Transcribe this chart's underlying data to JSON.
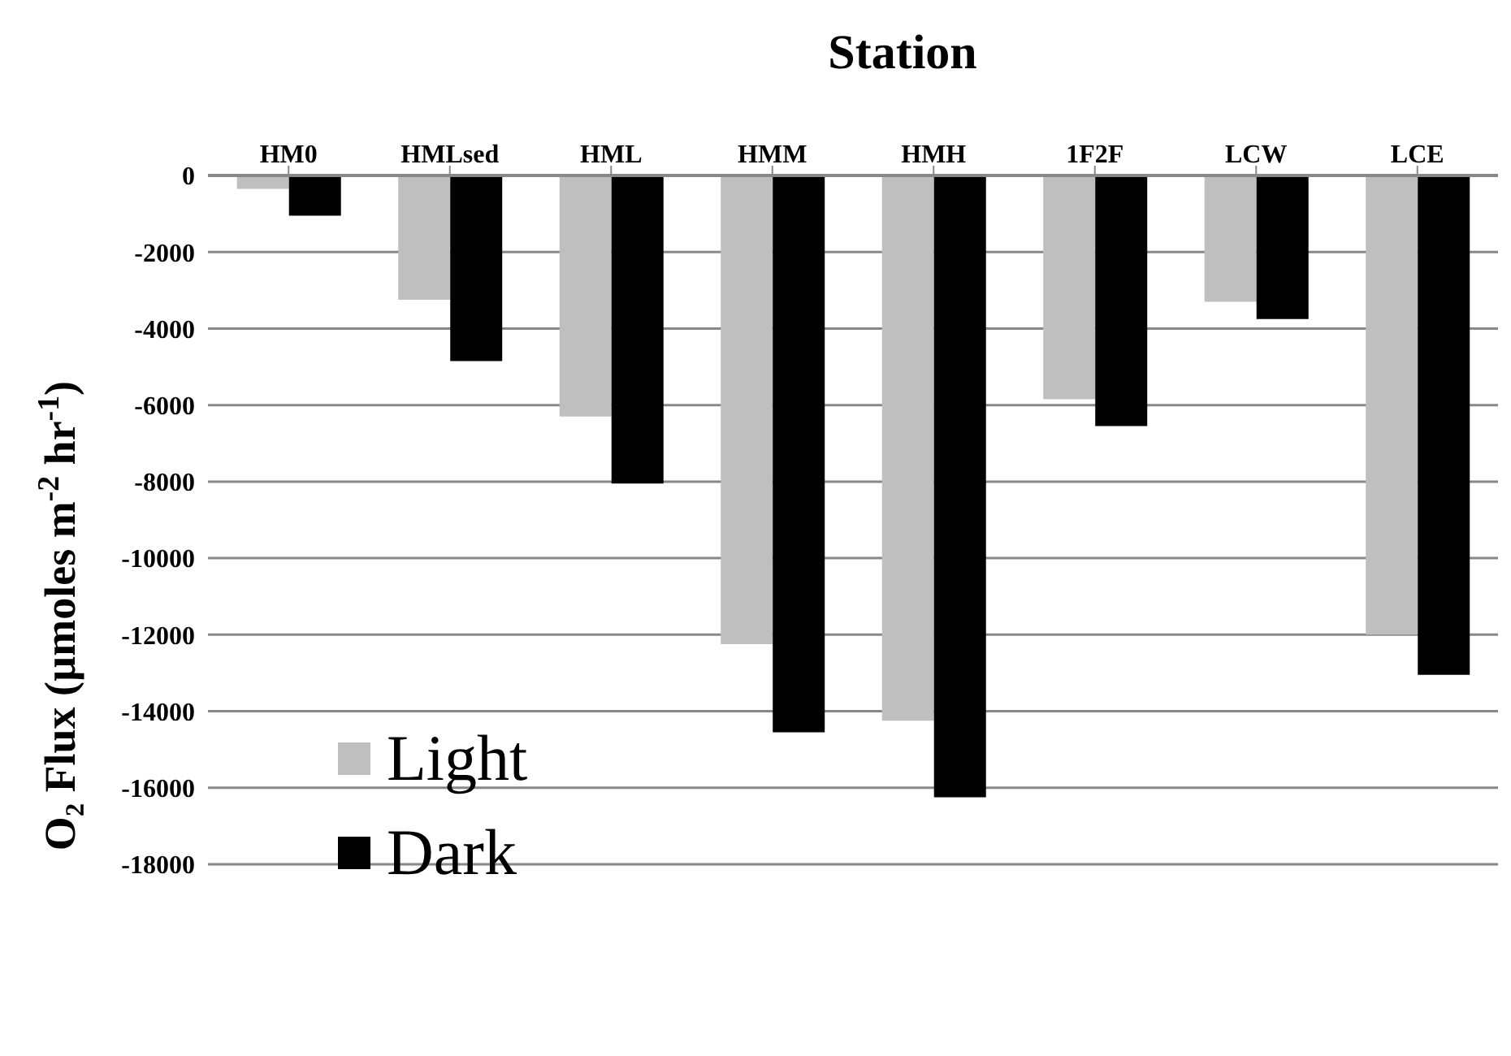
{
  "chart_data": {
    "type": "bar",
    "title": "Station",
    "ylabel": "O₂ Flux (µmoles m$^{-2}$ hr$^{-1}$)",
    "categories": [
      "HM0",
      "HMLsed",
      "HML",
      "HMM",
      "HMH",
      "1F2F",
      "LCW",
      "LCE"
    ],
    "series": [
      {
        "name": "Light",
        "color": "#bfbfbf",
        "values": [
          -350,
          -3250,
          -6300,
          -12250,
          -14250,
          -5850,
          -3300,
          -12000
        ]
      },
      {
        "name": "Dark",
        "color": "#000000",
        "values": [
          -1050,
          -4850,
          -8050,
          -14550,
          -16250,
          -6550,
          -3750,
          -13050
        ]
      }
    ],
    "ylim": [
      -18000,
      0
    ],
    "yticks": [
      0,
      -2000,
      -4000,
      -6000,
      -8000,
      -10000,
      -12000,
      -14000,
      -16000,
      -18000
    ],
    "grid": "y",
    "legend": "bottom left"
  }
}
